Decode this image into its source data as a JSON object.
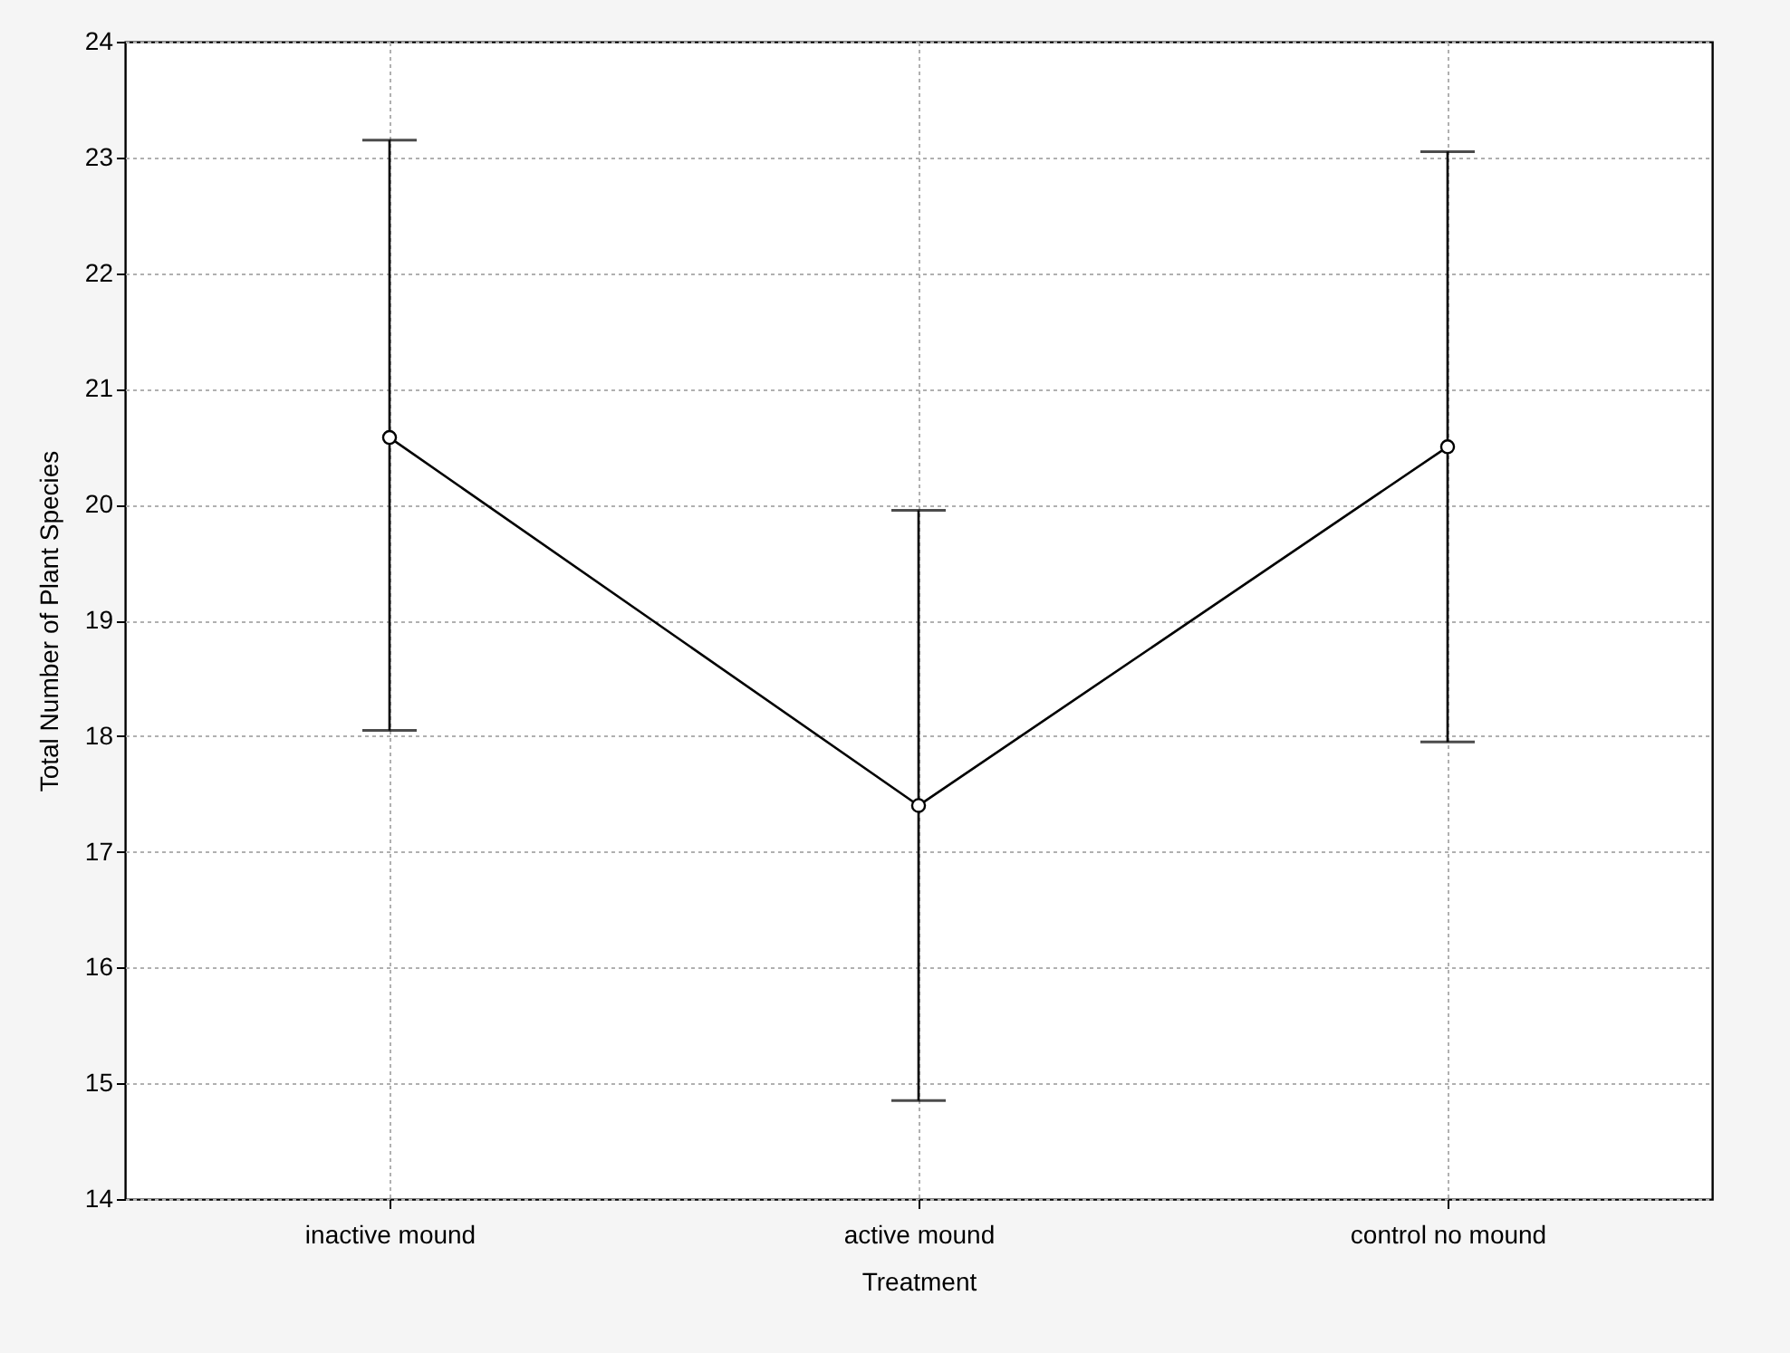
{
  "chart_data": {
    "type": "line",
    "xlabel": "Treatment",
    "ylabel": "Total Number of Plant Species",
    "categories": [
      "inactive mound",
      "active mound",
      "control no mound"
    ],
    "series": [
      {
        "color": "#000000",
        "values": [
          20.58,
          17.4,
          20.5
        ],
        "errors": [
          [
            18.05,
            23.15
          ],
          [
            14.85,
            19.95
          ],
          [
            17.95,
            23.05
          ]
        ]
      }
    ],
    "ylim": [
      14,
      24
    ],
    "yticks": [
      14,
      15,
      16,
      17,
      18,
      19,
      20,
      21,
      22,
      23,
      24
    ],
    "grid": true,
    "marker": "circle",
    "line_style": "solid"
  }
}
